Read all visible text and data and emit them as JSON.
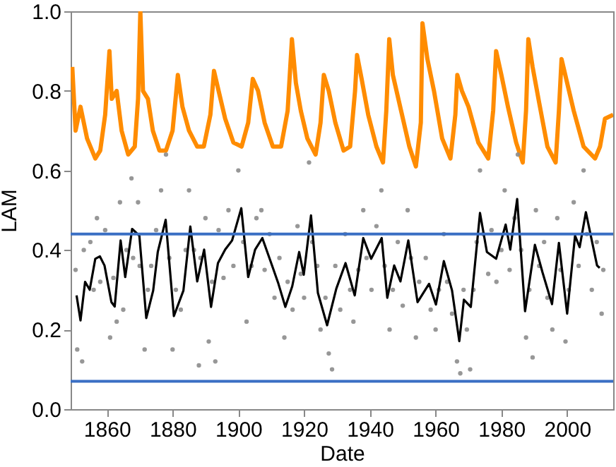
{
  "chart_data": {
    "type": "line",
    "xlabel": "Date",
    "ylabel": "LAM",
    "xlim": [
      1849,
      2014
    ],
    "ylim": [
      0,
      1
    ],
    "xticks": [
      1860,
      1880,
      1900,
      1920,
      1940,
      1960,
      1980,
      2000
    ],
    "yticks": [
      {
        "value": 0,
        "label": "0.0"
      },
      0.2,
      0.4,
      0.6,
      0.8,
      {
        "value": 1,
        "label": "1.0"
      }
    ],
    "ref_lines": [
      {
        "axis": "y",
        "value": 0.44,
        "color": "#3a6fc4"
      },
      {
        "axis": "y",
        "value": 0.07,
        "color": "#3a6fc4"
      }
    ],
    "series": [
      {
        "color": "#ff8c00",
        "x": [
          1849.5,
          1850.5,
          1852,
          1854,
          1856.5,
          1858,
          1859.5,
          1860.8,
          1861.5,
          1863,
          1864.5,
          1866.5,
          1868.5,
          1869.5,
          1870.2,
          1871,
          1872.5,
          1874,
          1876,
          1878,
          1880,
          1881.6,
          1883,
          1885,
          1887.5,
          1889.5,
          1891.5,
          1892.6,
          1894,
          1896,
          1898.5,
          1901,
          1903,
          1904.4,
          1906,
          1908,
          1910.5,
          1913,
          1915,
          1916.3,
          1917.5,
          1919,
          1921,
          1923.5,
          1925,
          1926,
          1927.5,
          1929.5,
          1932,
          1934,
          1935.5,
          1936.1,
          1937.5,
          1939.5,
          1942,
          1944,
          1945,
          1945.9,
          1947,
          1949.5,
          1952,
          1954,
          1955.5,
          1956,
          1957.5,
          1959.5,
          1962,
          1964.5,
          1966,
          1966.6,
          1968,
          1970,
          1973,
          1976,
          1977.5,
          1978.4,
          1980,
          1982,
          1984.5,
          1986.5,
          1987.5,
          1988.2,
          1989.5,
          1991.5,
          1994,
          1996.5,
          1997.5,
          1998.3,
          2000,
          2002,
          2005,
          2008.5,
          2010,
          2011.5,
          2014
        ],
        "values": [
          0.86,
          0.7,
          0.76,
          0.68,
          0.63,
          0.65,
          0.74,
          0.9,
          0.78,
          0.8,
          0.7,
          0.64,
          0.66,
          0.78,
          1.0,
          0.8,
          0.78,
          0.7,
          0.65,
          0.65,
          0.7,
          0.84,
          0.76,
          0.7,
          0.66,
          0.66,
          0.74,
          0.85,
          0.8,
          0.73,
          0.67,
          0.66,
          0.72,
          0.83,
          0.8,
          0.72,
          0.66,
          0.66,
          0.75,
          0.93,
          0.82,
          0.75,
          0.68,
          0.64,
          0.72,
          0.84,
          0.8,
          0.72,
          0.65,
          0.66,
          0.8,
          0.89,
          0.83,
          0.74,
          0.66,
          0.62,
          0.75,
          0.93,
          0.84,
          0.75,
          0.66,
          0.61,
          0.72,
          0.97,
          0.88,
          0.8,
          0.68,
          0.63,
          0.74,
          0.84,
          0.8,
          0.76,
          0.67,
          0.63,
          0.75,
          0.9,
          0.84,
          0.76,
          0.67,
          0.62,
          0.75,
          0.93,
          0.86,
          0.77,
          0.66,
          0.62,
          0.75,
          0.88,
          0.82,
          0.75,
          0.66,
          0.63,
          0.66,
          0.73,
          0.74
        ]
      },
      {
        "type": "scatter",
        "color": "#8c8c8c",
        "x": [
          1850.5,
          1851,
          1852.5,
          1853,
          1855,
          1856,
          1857,
          1858,
          1859.5,
          1861,
          1862,
          1863,
          1864,
          1865,
          1866,
          1867.5,
          1868,
          1869.5,
          1870,
          1871.5,
          1872.5,
          1873.5,
          1875,
          1876.5,
          1878,
          1879,
          1880,
          1881,
          1882.5,
          1884,
          1885,
          1886.5,
          1888,
          1888.5,
          1890,
          1891,
          1892,
          1893,
          1894,
          1895.5,
          1897,
          1898.5,
          1900,
          1901.5,
          1902.5,
          1904,
          1905.5,
          1907,
          1908,
          1909.5,
          1911,
          1912.5,
          1914,
          1915,
          1916.5,
          1918,
          1919,
          1920,
          1921.5,
          1922.5,
          1924,
          1925,
          1926.5,
          1927.5,
          1928.5,
          1929.5,
          1931,
          1932.5,
          1934,
          1935,
          1936.5,
          1938,
          1939,
          1940.5,
          1942,
          1943.5,
          1944.5,
          1946,
          1947,
          1948.5,
          1950,
          1951.5,
          1952.5,
          1954,
          1955,
          1957,
          1958.5,
          1960,
          1961,
          1962.5,
          1963.5,
          1965,
          1966.5,
          1967.5,
          1968.5,
          1969.5,
          1970.5,
          1971.5,
          1972.5,
          1973.5,
          1974.5,
          1976,
          1977,
          1978.5,
          1980,
          1981,
          1982.5,
          1984,
          1985,
          1986,
          1987.5,
          1988.5,
          1989.5,
          1990.5,
          1991.5,
          1993,
          1994,
          1995.5,
          1997,
          1998,
          1999.5,
          2000.5,
          2002,
          2003.5,
          2005,
          2006,
          2007.5,
          2009,
          2010.5,
          2011
        ],
        "values": [
          0.35,
          0.15,
          0.12,
          0.4,
          0.42,
          0.3,
          0.48,
          0.32,
          0.45,
          0.18,
          0.33,
          0.22,
          0.52,
          0.25,
          0.4,
          0.58,
          0.38,
          0.52,
          0.36,
          0.15,
          0.3,
          0.36,
          0.45,
          0.55,
          0.64,
          0.38,
          0.15,
          0.3,
          0.25,
          0.4,
          0.55,
          0.4,
          0.11,
          0.38,
          0.48,
          0.17,
          0.32,
          0.12,
          0.45,
          0.33,
          0.5,
          0.36,
          0.6,
          0.42,
          0.22,
          0.36,
          0.48,
          0.5,
          0.35,
          0.44,
          0.28,
          0.38,
          0.18,
          0.32,
          0.25,
          0.46,
          0.34,
          0.28,
          0.62,
          0.42,
          0.36,
          0.2,
          0.28,
          0.14,
          0.1,
          0.36,
          0.25,
          0.44,
          0.3,
          0.22,
          0.35,
          0.5,
          0.38,
          0.3,
          0.46,
          0.55,
          0.36,
          0.2,
          0.3,
          0.42,
          0.26,
          0.5,
          0.38,
          0.18,
          0.32,
          0.38,
          0.25,
          0.2,
          0.3,
          0.44,
          0.32,
          0.24,
          0.12,
          0.09,
          0.3,
          0.2,
          0.1,
          0.3,
          0.42,
          0.6,
          0.44,
          0.34,
          0.45,
          0.32,
          0.4,
          0.55,
          0.35,
          0.48,
          0.64,
          0.4,
          0.18,
          0.3,
          0.13,
          0.5,
          0.36,
          0.42,
          0.28,
          0.2,
          0.48,
          0.35,
          0.17,
          0.3,
          0.52,
          0.36,
          0.6,
          0.44,
          0.3,
          0.42,
          0.24,
          0.35
        ]
      },
      {
        "color": "#000000",
        "x": [
          1850.8,
          1852,
          1853.4,
          1854.8,
          1856.5,
          1857.9,
          1859.3,
          1861.4,
          1862.4,
          1864.2,
          1865.6,
          1867.7,
          1869.9,
          1872,
          1874.1,
          1875.5,
          1877.9,
          1880.4,
          1883.3,
          1885.4,
          1887.5,
          1889.6,
          1891.7,
          1893.8,
          1896,
          1898.1,
          1900.9,
          1903,
          1905.1,
          1907.3,
          1910,
          1912.2,
          1914.3,
          1916.4,
          1918.5,
          1919.9,
          1922.1,
          1924.2,
          1927,
          1929.8,
          1932.6,
          1935.4,
          1938,
          1940.4,
          1943.6,
          1945.3,
          1947.4,
          1949.3,
          1951.7,
          1954.5,
          1958,
          1960.1,
          1962.5,
          1965,
          1967.2,
          1968.6,
          1970.7,
          1973.5,
          1975.6,
          1978.4,
          1981.3,
          1982.7,
          1984.8,
          1987.2,
          1990.2,
          1992.5,
          1995.4,
          1997.5,
          2000,
          2002.4,
          2003.8,
          2005.7,
          2009.1,
          2009.9
        ],
        "values": [
          0.286,
          0.223,
          0.32,
          0.3,
          0.378,
          0.384,
          0.361,
          0.269,
          0.258,
          0.424,
          0.332,
          0.453,
          0.436,
          0.229,
          0.298,
          0.395,
          0.476,
          0.234,
          0.298,
          0.459,
          0.321,
          0.401,
          0.257,
          0.367,
          0.401,
          0.424,
          0.505,
          0.332,
          0.401,
          0.43,
          0.367,
          0.315,
          0.257,
          0.309,
          0.395,
          0.338,
          0.487,
          0.292,
          0.211,
          0.303,
          0.367,
          0.286,
          0.43,
          0.378,
          0.43,
          0.28,
          0.361,
          0.321,
          0.424,
          0.269,
          0.315,
          0.263,
          0.372,
          0.298,
          0.171,
          0.275,
          0.257,
          0.493,
          0.395,
          0.378,
          0.464,
          0.401,
          0.528,
          0.246,
          0.413,
          0.344,
          0.264,
          0.418,
          0.24,
          0.436,
          0.407,
          0.495,
          0.361,
          0.355
        ]
      }
    ]
  }
}
